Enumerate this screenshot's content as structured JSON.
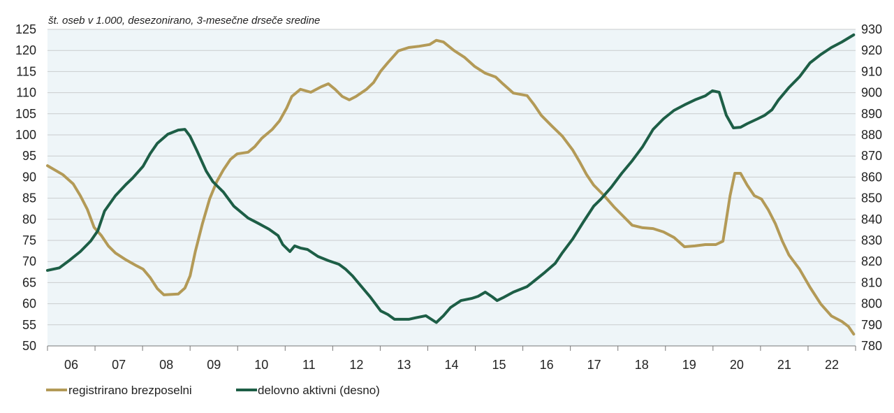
{
  "chart_data": {
    "type": "line",
    "subtitle": "št. oseb v 1.000, desezonirano, 3-mesečne drseče sredine",
    "x_tick_labels": [
      "06",
      "07",
      "08",
      "09",
      "10",
      "11",
      "12",
      "13",
      "14",
      "15",
      "16",
      "17",
      "18",
      "19",
      "20",
      "21",
      "22"
    ],
    "x_range": [
      2006,
      2023
    ],
    "y_left": {
      "range": [
        50,
        125
      ],
      "ticks": [
        "125",
        "120",
        "115",
        "110",
        "105",
        "100",
        "95",
        "90",
        "85",
        "80",
        "75",
        "70",
        "65",
        "60",
        "55",
        "50"
      ]
    },
    "y_right": {
      "range": [
        780,
        930
      ],
      "ticks": [
        "930",
        "920",
        "910",
        "900",
        "890",
        "880",
        "870",
        "860",
        "850",
        "840",
        "830",
        "820",
        "810",
        "800",
        "790",
        "780"
      ]
    },
    "grid": "horizontal",
    "plot_background": "#eef5f8",
    "legend_position": "bottom-left",
    "series": [
      {
        "name": "registrirano brezposelni",
        "axis": "left",
        "color": "#b39a57",
        "points": [
          [
            2006.0,
            92.7
          ],
          [
            2006.32,
            90.6
          ],
          [
            2006.54,
            88.4
          ],
          [
            2006.69,
            85.6
          ],
          [
            2006.84,
            82.3
          ],
          [
            2006.98,
            78.1
          ],
          [
            2007.13,
            76.2
          ],
          [
            2007.28,
            73.7
          ],
          [
            2007.43,
            72.0
          ],
          [
            2007.65,
            70.4
          ],
          [
            2007.87,
            69.0
          ],
          [
            2008.01,
            68.2
          ],
          [
            2008.16,
            66.2
          ],
          [
            2008.31,
            63.6
          ],
          [
            2008.45,
            62.1
          ],
          [
            2008.75,
            62.3
          ],
          [
            2008.89,
            63.7
          ],
          [
            2009.0,
            66.6
          ],
          [
            2009.11,
            72.4
          ],
          [
            2009.26,
            79.0
          ],
          [
            2009.41,
            84.8
          ],
          [
            2009.56,
            88.9
          ],
          [
            2009.7,
            91.7
          ],
          [
            2009.85,
            94.2
          ],
          [
            2009.99,
            95.5
          ],
          [
            2010.22,
            95.9
          ],
          [
            2010.36,
            97.2
          ],
          [
            2010.51,
            99.2
          ],
          [
            2010.73,
            101.3
          ],
          [
            2010.88,
            103.3
          ],
          [
            2011.03,
            106.3
          ],
          [
            2011.14,
            109.1
          ],
          [
            2011.32,
            110.8
          ],
          [
            2011.54,
            110.1
          ],
          [
            2011.76,
            111.4
          ],
          [
            2011.91,
            112.1
          ],
          [
            2012.05,
            110.8
          ],
          [
            2012.2,
            109.1
          ],
          [
            2012.35,
            108.3
          ],
          [
            2012.49,
            109.1
          ],
          [
            2012.71,
            110.8
          ],
          [
            2012.86,
            112.4
          ],
          [
            2013.01,
            115.1
          ],
          [
            2013.16,
            117.1
          ],
          [
            2013.38,
            119.9
          ],
          [
            2013.6,
            120.7
          ],
          [
            2013.82,
            121.0
          ],
          [
            2014.04,
            121.4
          ],
          [
            2014.18,
            122.4
          ],
          [
            2014.33,
            122.0
          ],
          [
            2014.55,
            120.0
          ],
          [
            2014.77,
            118.4
          ],
          [
            2014.99,
            116.2
          ],
          [
            2015.21,
            114.6
          ],
          [
            2015.43,
            113.7
          ],
          [
            2015.58,
            112.1
          ],
          [
            2015.8,
            109.9
          ],
          [
            2016.09,
            109.3
          ],
          [
            2016.24,
            107.1
          ],
          [
            2016.39,
            104.6
          ],
          [
            2016.61,
            102.1
          ],
          [
            2016.83,
            99.7
          ],
          [
            2017.05,
            96.4
          ],
          [
            2017.2,
            93.5
          ],
          [
            2017.34,
            90.6
          ],
          [
            2017.49,
            88.1
          ],
          [
            2017.71,
            85.6
          ],
          [
            2017.93,
            82.8
          ],
          [
            2018.15,
            80.3
          ],
          [
            2018.3,
            78.6
          ],
          [
            2018.52,
            78.0
          ],
          [
            2018.74,
            77.8
          ],
          [
            2018.96,
            77.0
          ],
          [
            2019.18,
            75.7
          ],
          [
            2019.4,
            73.5
          ],
          [
            2019.62,
            73.7
          ],
          [
            2019.84,
            74.0
          ],
          [
            2020.06,
            74.0
          ],
          [
            2020.21,
            74.8
          ],
          [
            2020.36,
            85.6
          ],
          [
            2020.46,
            90.9
          ],
          [
            2020.58,
            90.9
          ],
          [
            2020.72,
            88.1
          ],
          [
            2020.87,
            85.6
          ],
          [
            2021.02,
            84.8
          ],
          [
            2021.16,
            82.3
          ],
          [
            2021.31,
            79.0
          ],
          [
            2021.46,
            74.8
          ],
          [
            2021.6,
            71.5
          ],
          [
            2021.82,
            68.2
          ],
          [
            2022.04,
            63.9
          ],
          [
            2022.27,
            59.9
          ],
          [
            2022.49,
            57.1
          ],
          [
            2022.71,
            55.8
          ],
          [
            2022.85,
            54.6
          ],
          [
            2022.96,
            52.8
          ]
        ]
      },
      {
        "name": "delovno aktivni (desno)",
        "axis": "right",
        "color": "#1d5e46",
        "points": [
          [
            2006.0,
            815.8
          ],
          [
            2006.25,
            817.0
          ],
          [
            2006.47,
            820.7
          ],
          [
            2006.69,
            824.7
          ],
          [
            2006.91,
            829.7
          ],
          [
            2007.06,
            834.6
          ],
          [
            2007.2,
            843.9
          ],
          [
            2007.43,
            851.2
          ],
          [
            2007.65,
            856.5
          ],
          [
            2007.79,
            859.5
          ],
          [
            2008.01,
            865.1
          ],
          [
            2008.16,
            871.1
          ],
          [
            2008.31,
            876.0
          ],
          [
            2008.53,
            880.3
          ],
          [
            2008.75,
            882.3
          ],
          [
            2008.89,
            882.6
          ],
          [
            2009.0,
            879.3
          ],
          [
            2009.14,
            872.7
          ],
          [
            2009.34,
            862.8
          ],
          [
            2009.48,
            857.8
          ],
          [
            2009.7,
            852.9
          ],
          [
            2009.92,
            846.2
          ],
          [
            2010.22,
            840.6
          ],
          [
            2010.44,
            838.0
          ],
          [
            2010.66,
            835.3
          ],
          [
            2010.85,
            832.3
          ],
          [
            2010.95,
            828.0
          ],
          [
            2011.1,
            824.7
          ],
          [
            2011.2,
            827.4
          ],
          [
            2011.32,
            826.4
          ],
          [
            2011.47,
            825.7
          ],
          [
            2011.69,
            822.4
          ],
          [
            2011.91,
            820.4
          ],
          [
            2012.13,
            818.7
          ],
          [
            2012.27,
            816.4
          ],
          [
            2012.42,
            813.1
          ],
          [
            2012.64,
            807.2
          ],
          [
            2012.79,
            803.2
          ],
          [
            2013.01,
            796.6
          ],
          [
            2013.16,
            794.9
          ],
          [
            2013.3,
            792.6
          ],
          [
            2013.6,
            792.6
          ],
          [
            2013.74,
            793.3
          ],
          [
            2013.96,
            794.3
          ],
          [
            2014.18,
            791.1
          ],
          [
            2014.33,
            794.3
          ],
          [
            2014.48,
            798.2
          ],
          [
            2014.7,
            801.5
          ],
          [
            2014.92,
            802.5
          ],
          [
            2015.06,
            803.5
          ],
          [
            2015.21,
            805.5
          ],
          [
            2015.36,
            803.2
          ],
          [
            2015.46,
            801.5
          ],
          [
            2015.58,
            802.8
          ],
          [
            2015.8,
            805.5
          ],
          [
            2016.09,
            808.1
          ],
          [
            2016.24,
            810.8
          ],
          [
            2016.46,
            814.8
          ],
          [
            2016.68,
            819.1
          ],
          [
            2016.83,
            824.1
          ],
          [
            2017.05,
            830.7
          ],
          [
            2017.27,
            838.6
          ],
          [
            2017.49,
            846.2
          ],
          [
            2017.64,
            849.5
          ],
          [
            2017.86,
            855.2
          ],
          [
            2018.08,
            861.8
          ],
          [
            2018.3,
            867.7
          ],
          [
            2018.52,
            874.4
          ],
          [
            2018.74,
            882.6
          ],
          [
            2018.96,
            887.6
          ],
          [
            2019.18,
            891.6
          ],
          [
            2019.4,
            894.2
          ],
          [
            2019.62,
            896.6
          ],
          [
            2019.84,
            898.5
          ],
          [
            2019.99,
            900.9
          ],
          [
            2020.13,
            900.2
          ],
          [
            2020.28,
            889.3
          ],
          [
            2020.43,
            883.3
          ],
          [
            2020.58,
            883.6
          ],
          [
            2020.72,
            885.3
          ],
          [
            2020.94,
            887.6
          ],
          [
            2021.09,
            889.3
          ],
          [
            2021.24,
            891.9
          ],
          [
            2021.38,
            896.6
          ],
          [
            2021.6,
            902.5
          ],
          [
            2021.82,
            907.5
          ],
          [
            2022.04,
            914.1
          ],
          [
            2022.27,
            918.1
          ],
          [
            2022.49,
            921.4
          ],
          [
            2022.71,
            924.0
          ],
          [
            2022.96,
            927.4
          ]
        ]
      }
    ]
  }
}
